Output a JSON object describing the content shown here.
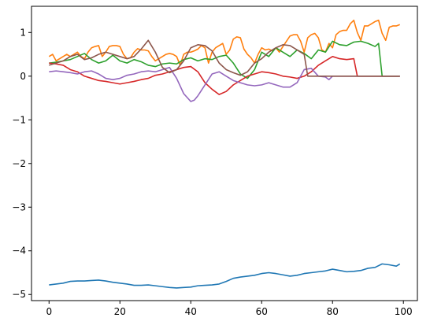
{
  "chart_data": {
    "type": "line",
    "title": "",
    "xlabel": "",
    "ylabel": "",
    "xlim": [
      -4.95,
      103.95
    ],
    "ylim": [
      -5.14,
      1.6
    ],
    "xticks": [
      0,
      20,
      40,
      60,
      80,
      100
    ],
    "yticks": [
      1,
      0,
      -1,
      -2,
      -3,
      -4,
      -5
    ],
    "xtick_labels": [
      "0",
      "20",
      "40",
      "60",
      "80",
      "100"
    ],
    "ytick_labels": [
      "1",
      "0",
      "−1",
      "−2",
      "−3",
      "−4",
      "−5"
    ],
    "grid": false,
    "legend": "none",
    "series": [
      {
        "color": "#1f77b4",
        "x": [
          0,
          2,
          4,
          6,
          8,
          10,
          12,
          14,
          16,
          18,
          20,
          22,
          24,
          26,
          28,
          30,
          32,
          34,
          36,
          38,
          40,
          42,
          44,
          46,
          48,
          50,
          52,
          54,
          56,
          58,
          60,
          62,
          64,
          66,
          68,
          70,
          72,
          74,
          76,
          78,
          80,
          82,
          84,
          86,
          88,
          90,
          92,
          94,
          96,
          98,
          99
        ],
        "y": [
          -4.78,
          -4.76,
          -4.74,
          -4.7,
          -4.69,
          -4.69,
          -4.68,
          -4.67,
          -4.69,
          -4.72,
          -4.74,
          -4.76,
          -4.79,
          -4.79,
          -4.78,
          -4.8,
          -4.82,
          -4.84,
          -4.85,
          -4.84,
          -4.83,
          -4.8,
          -4.79,
          -4.78,
          -4.76,
          -4.7,
          -4.63,
          -4.6,
          -4.58,
          -4.56,
          -4.52,
          -4.5,
          -4.52,
          -4.55,
          -4.58,
          -4.56,
          -4.52,
          -4.5,
          -4.48,
          -4.46,
          -4.42,
          -4.45,
          -4.48,
          -4.47,
          -4.45,
          -4.4,
          -4.38,
          -4.3,
          -4.32,
          -4.35,
          -4.3
        ]
      },
      {
        "color": "#ff7f0e",
        "x": [
          0,
          1,
          2,
          3,
          4,
          5,
          6,
          7,
          8,
          9,
          10,
          11,
          12,
          13,
          14,
          15,
          16,
          17,
          18,
          19,
          20,
          21,
          22,
          23,
          24,
          25,
          26,
          27,
          28,
          29,
          30,
          31,
          32,
          33,
          34,
          35,
          36,
          37,
          38,
          39,
          40,
          41,
          42,
          43,
          44,
          45,
          46,
          47,
          48,
          49,
          50,
          51,
          52,
          53,
          54,
          55,
          56,
          57,
          58,
          59,
          60,
          61,
          62,
          63,
          64,
          65,
          66,
          67,
          68,
          69,
          70,
          71,
          72,
          73,
          74,
          75,
          76,
          77,
          78,
          79,
          80,
          81,
          82,
          83,
          84,
          85,
          86,
          87,
          88,
          89,
          90,
          91,
          92,
          93,
          94,
          95,
          96,
          97,
          98,
          99
        ],
        "y": [
          0.45,
          0.5,
          0.35,
          0.4,
          0.45,
          0.5,
          0.45,
          0.5,
          0.55,
          0.45,
          0.4,
          0.55,
          0.65,
          0.68,
          0.7,
          0.45,
          0.55,
          0.68,
          0.7,
          0.7,
          0.68,
          0.5,
          0.4,
          0.42,
          0.55,
          0.63,
          0.6,
          0.6,
          0.58,
          0.45,
          0.35,
          0.4,
          0.45,
          0.5,
          0.52,
          0.5,
          0.45,
          0.25,
          0.5,
          0.55,
          0.55,
          0.58,
          0.62,
          0.7,
          0.65,
          0.3,
          0.55,
          0.65,
          0.7,
          0.75,
          0.5,
          0.6,
          0.85,
          0.9,
          0.88,
          0.62,
          0.5,
          0.42,
          0.3,
          0.5,
          0.65,
          0.6,
          0.62,
          0.58,
          0.65,
          0.55,
          0.68,
          0.8,
          0.92,
          0.95,
          0.95,
          0.8,
          0.55,
          0.88,
          0.95,
          0.98,
          0.88,
          0.6,
          0.55,
          0.75,
          0.65,
          0.95,
          1.02,
          1.05,
          1.05,
          1.2,
          1.28,
          1.0,
          0.82,
          1.15,
          1.15,
          1.2,
          1.25,
          1.28,
          0.98,
          0.82,
          1.12,
          1.15,
          1.15,
          1.18
        ]
      },
      {
        "color": "#2ca02c",
        "x": [
          0,
          2,
          4,
          6,
          8,
          10,
          12,
          14,
          16,
          18,
          20,
          22,
          24,
          26,
          28,
          30,
          32,
          34,
          36,
          38,
          40,
          42,
          44,
          46,
          48,
          50,
          52,
          54,
          56,
          58,
          60,
          62,
          64,
          66,
          68,
          70,
          72,
          74,
          76,
          78,
          80,
          82,
          84,
          86,
          88,
          90,
          92,
          93,
          94,
          95,
          96,
          97,
          98,
          99
        ],
        "y": [
          0.3,
          0.32,
          0.35,
          0.38,
          0.45,
          0.52,
          0.38,
          0.3,
          0.35,
          0.48,
          0.35,
          0.3,
          0.38,
          0.33,
          0.25,
          0.22,
          0.28,
          0.3,
          0.28,
          0.38,
          0.42,
          0.35,
          0.4,
          0.38,
          0.45,
          0.48,
          0.3,
          0.05,
          -0.05,
          0.15,
          0.55,
          0.45,
          0.65,
          0.55,
          0.45,
          0.6,
          0.52,
          0.4,
          0.6,
          0.55,
          0.8,
          0.72,
          0.7,
          0.78,
          0.8,
          0.75,
          0.68,
          0.75,
          0.0,
          0.0,
          0.0,
          0.0,
          0.0,
          0.0
        ]
      },
      {
        "color": "#d62728",
        "x": [
          0,
          2,
          4,
          6,
          8,
          10,
          12,
          14,
          16,
          18,
          20,
          22,
          24,
          26,
          28,
          30,
          32,
          34,
          36,
          38,
          40,
          42,
          44,
          46,
          48,
          50,
          52,
          54,
          56,
          58,
          60,
          62,
          64,
          66,
          68,
          70,
          72,
          74,
          76,
          78,
          80,
          82,
          84,
          86,
          87,
          88,
          90,
          92,
          94,
          96,
          98,
          99
        ],
        "y": [
          0.3,
          0.28,
          0.25,
          0.15,
          0.1,
          0.0,
          -0.05,
          -0.1,
          -0.12,
          -0.15,
          -0.18,
          -0.15,
          -0.12,
          -0.08,
          -0.05,
          0.02,
          0.05,
          0.1,
          0.15,
          0.2,
          0.22,
          0.1,
          -0.15,
          -0.3,
          -0.42,
          -0.35,
          -0.2,
          -0.1,
          0.0,
          0.05,
          0.1,
          0.08,
          0.05,
          0.0,
          -0.02,
          -0.05,
          0.0,
          0.1,
          0.25,
          0.35,
          0.45,
          0.4,
          0.38,
          0.4,
          0.0,
          0.0,
          0.0,
          0.0,
          0.0,
          0.0,
          0.0,
          0.0
        ]
      },
      {
        "color": "#9467bd",
        "x": [
          0,
          2,
          4,
          6,
          8,
          10,
          12,
          14,
          16,
          18,
          20,
          22,
          24,
          26,
          28,
          30,
          32,
          34,
          36,
          38,
          40,
          41,
          42,
          44,
          46,
          48,
          50,
          52,
          54,
          56,
          58,
          60,
          62,
          64,
          66,
          68,
          70,
          72,
          74,
          76,
          78,
          79,
          80,
          82,
          84,
          86,
          88,
          90,
          92,
          94,
          96,
          98,
          99
        ],
        "y": [
          0.1,
          0.12,
          0.1,
          0.08,
          0.05,
          0.1,
          0.12,
          0.05,
          -0.05,
          -0.08,
          -0.05,
          0.02,
          0.05,
          0.1,
          0.12,
          0.1,
          0.15,
          0.2,
          -0.05,
          -0.4,
          -0.58,
          -0.55,
          -0.45,
          -0.2,
          0.05,
          0.1,
          0.0,
          -0.1,
          -0.15,
          -0.2,
          -0.22,
          -0.2,
          -0.15,
          -0.2,
          -0.25,
          -0.25,
          -0.15,
          0.15,
          0.18,
          0.0,
          -0.02,
          -0.08,
          0.0,
          0.0,
          0.0,
          0.0,
          0.0,
          0.0,
          0.0,
          0.0,
          0.0,
          0.0,
          0.0
        ]
      },
      {
        "color": "#8c564b",
        "x": [
          0,
          2,
          4,
          6,
          8,
          10,
          12,
          14,
          16,
          18,
          20,
          22,
          24,
          26,
          28,
          30,
          32,
          34,
          36,
          38,
          40,
          42,
          44,
          46,
          48,
          50,
          52,
          54,
          56,
          58,
          60,
          62,
          64,
          66,
          68,
          70,
          72,
          73,
          74,
          76,
          78,
          80,
          82,
          84,
          86,
          88,
          90,
          92,
          94,
          96,
          98,
          99
        ],
        "y": [
          0.25,
          0.3,
          0.35,
          0.45,
          0.5,
          0.38,
          0.42,
          0.5,
          0.55,
          0.5,
          0.45,
          0.4,
          0.45,
          0.62,
          0.82,
          0.55,
          0.2,
          0.08,
          0.15,
          0.35,
          0.65,
          0.72,
          0.7,
          0.58,
          0.3,
          0.15,
          0.08,
          0.02,
          0.1,
          0.3,
          0.4,
          0.55,
          0.65,
          0.72,
          0.7,
          0.6,
          0.5,
          0.0,
          0.0,
          0.0,
          0.0,
          0.0,
          0.0,
          0.0,
          0.0,
          0.0,
          0.0,
          0.0,
          0.0,
          0.0,
          0.0,
          0.0
        ]
      }
    ]
  }
}
